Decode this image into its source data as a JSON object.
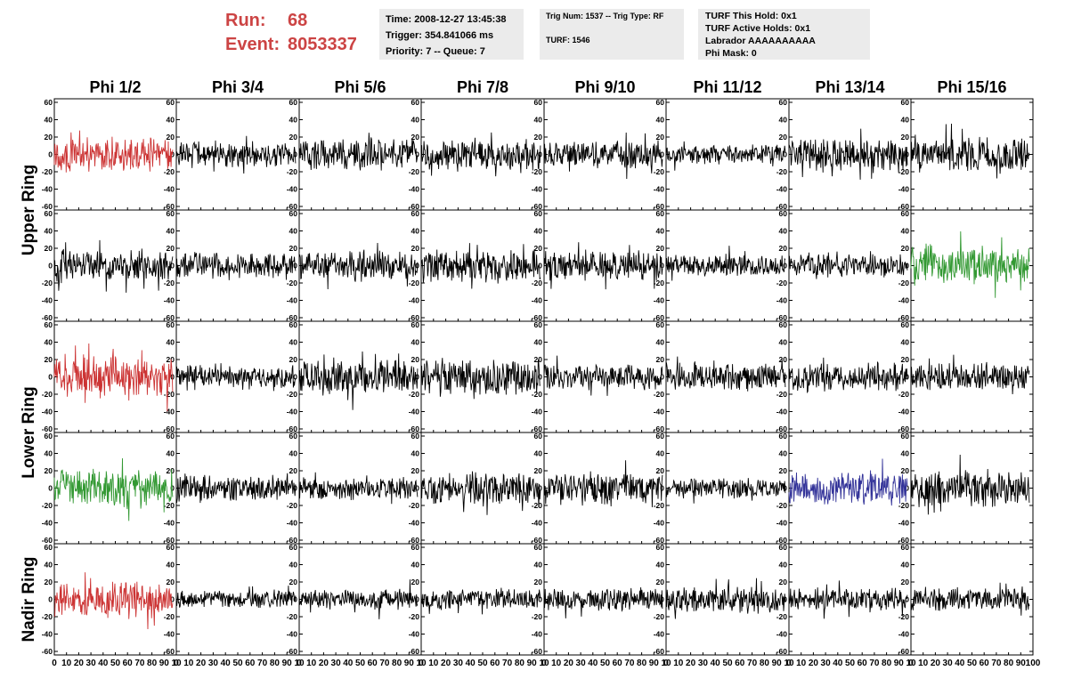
{
  "header": {
    "run_label": "Run:",
    "run_value": "68",
    "event_label": "Event:",
    "event_value": "8053337",
    "time": "Time: 2008-12-27 13:45:38",
    "trigger": "Trigger: 354.841066 ms",
    "priority_queue": "Priority: 7 -- Queue: 7",
    "trig_num_type": "Trig Num: 1537 -- Trig Type: RF",
    "turf": "TURF: 1546",
    "turf_this_hold": "TURF This Hold: 0x1",
    "turf_active_holds": "TURF Active Holds: 0x1",
    "labrador": "Labrador AAAAAAAAAA",
    "phi_mask": "Phi Mask: 0"
  },
  "chart_data": {
    "type": "line",
    "column_titles": [
      "Phi 1/2",
      "Phi 3/4",
      "Phi 5/6",
      "Phi 7/8",
      "Phi 9/10",
      "Phi 11/12",
      "Phi 13/14",
      "Phi 15/16"
    ],
    "ring_labels": [
      {
        "text": "Upper Ring",
        "rows": [
          0,
          1
        ]
      },
      {
        "text": "Lower Ring",
        "rows": [
          2,
          3
        ]
      },
      {
        "text": "Nadir Ring",
        "rows": [
          4
        ]
      }
    ],
    "x_range": [
      0,
      100
    ],
    "y_range": [
      -60,
      60
    ],
    "x_ticks": [
      0,
      10,
      20,
      30,
      40,
      50,
      60,
      70,
      80,
      90,
      100
    ],
    "y_ticks": [
      -60,
      -40,
      -20,
      0,
      20,
      40,
      60
    ],
    "x_tick_labels_panel": "0 10 20 30 40 50 60 70 80 90 10",
    "x_tick_labels_last": "0 10 20 30 40 50 60 70 80 90 100",
    "y_tick_labels": [
      "60",
      "40",
      "20",
      "0",
      "-20",
      "-40",
      "-60"
    ],
    "colors": {
      "red": "#cc3333",
      "green": "#339933",
      "blue": "#333399",
      "black": "#000000"
    },
    "panels": [
      {
        "row": 0,
        "col": 0,
        "color": "red",
        "amplitude": 15,
        "seed": 101
      },
      {
        "row": 0,
        "col": 1,
        "color": "black",
        "amplitude": 12,
        "seed": 102
      },
      {
        "row": 0,
        "col": 2,
        "color": "black",
        "amplitude": 14,
        "seed": 103
      },
      {
        "row": 0,
        "col": 3,
        "color": "black",
        "amplitude": 14,
        "seed": 104
      },
      {
        "row": 0,
        "col": 4,
        "color": "black",
        "amplitude": 12,
        "seed": 105
      },
      {
        "row": 0,
        "col": 5,
        "color": "black",
        "amplitude": 9,
        "seed": 106
      },
      {
        "row": 0,
        "col": 6,
        "color": "black",
        "amplitude": 14,
        "seed": 107
      },
      {
        "row": 0,
        "col": 7,
        "color": "black",
        "amplitude": 15,
        "seed": 108
      },
      {
        "row": 1,
        "col": 0,
        "color": "black",
        "amplitude": 15,
        "seed": 109
      },
      {
        "row": 1,
        "col": 1,
        "color": "black",
        "amplitude": 12,
        "seed": 110
      },
      {
        "row": 1,
        "col": 2,
        "color": "black",
        "amplitude": 14,
        "seed": 111
      },
      {
        "row": 1,
        "col": 3,
        "color": "black",
        "amplitude": 15,
        "seed": 112
      },
      {
        "row": 1,
        "col": 4,
        "color": "black",
        "amplitude": 14,
        "seed": 113
      },
      {
        "row": 1,
        "col": 5,
        "color": "black",
        "amplitude": 10,
        "seed": 114
      },
      {
        "row": 1,
        "col": 6,
        "color": "black",
        "amplitude": 10,
        "seed": 115
      },
      {
        "row": 1,
        "col": 7,
        "color": "green",
        "amplitude": 18,
        "seed": 116
      },
      {
        "row": 2,
        "col": 0,
        "color": "red",
        "amplitude": 18,
        "seed": 117
      },
      {
        "row": 2,
        "col": 1,
        "color": "black",
        "amplitude": 10,
        "seed": 118
      },
      {
        "row": 2,
        "col": 2,
        "color": "black",
        "amplitude": 15,
        "seed": 119
      },
      {
        "row": 2,
        "col": 3,
        "color": "black",
        "amplitude": 17,
        "seed": 120
      },
      {
        "row": 2,
        "col": 4,
        "color": "black",
        "amplitude": 12,
        "seed": 121
      },
      {
        "row": 2,
        "col": 5,
        "color": "black",
        "amplitude": 12,
        "seed": 122
      },
      {
        "row": 2,
        "col": 6,
        "color": "black",
        "amplitude": 13,
        "seed": 123
      },
      {
        "row": 2,
        "col": 7,
        "color": "black",
        "amplitude": 12,
        "seed": 124
      },
      {
        "row": 3,
        "col": 0,
        "color": "green",
        "amplitude": 17,
        "seed": 125
      },
      {
        "row": 3,
        "col": 1,
        "color": "black",
        "amplitude": 12,
        "seed": 126
      },
      {
        "row": 3,
        "col": 2,
        "color": "black",
        "amplitude": 10,
        "seed": 127
      },
      {
        "row": 3,
        "col": 3,
        "color": "black",
        "amplitude": 14,
        "seed": 128
      },
      {
        "row": 3,
        "col": 4,
        "color": "black",
        "amplitude": 14,
        "seed": 129
      },
      {
        "row": 3,
        "col": 5,
        "color": "black",
        "amplitude": 9,
        "seed": 130
      },
      {
        "row": 3,
        "col": 6,
        "color": "blue",
        "amplitude": 15,
        "seed": 131
      },
      {
        "row": 3,
        "col": 7,
        "color": "black",
        "amplitude": 16,
        "seed": 132
      },
      {
        "row": 4,
        "col": 0,
        "color": "red",
        "amplitude": 16,
        "seed": 133
      },
      {
        "row": 4,
        "col": 1,
        "color": "black",
        "amplitude": 8,
        "seed": 134
      },
      {
        "row": 4,
        "col": 2,
        "color": "black",
        "amplitude": 9,
        "seed": 135
      },
      {
        "row": 4,
        "col": 3,
        "color": "black",
        "amplitude": 9,
        "seed": 136
      },
      {
        "row": 4,
        "col": 4,
        "color": "black",
        "amplitude": 10,
        "seed": 137
      },
      {
        "row": 4,
        "col": 5,
        "color": "black",
        "amplitude": 12,
        "seed": 138
      },
      {
        "row": 4,
        "col": 6,
        "color": "black",
        "amplitude": 10,
        "seed": 139
      },
      {
        "row": 4,
        "col": 7,
        "color": "black",
        "amplitude": 11,
        "seed": 140
      }
    ]
  }
}
